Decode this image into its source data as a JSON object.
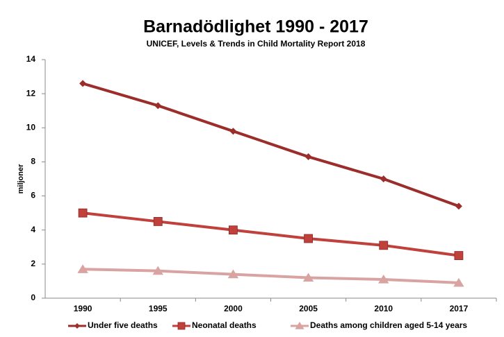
{
  "chart_data": {
    "type": "line",
    "title": "Barnadödlighet 1990 - 2017",
    "subtitle": "UNICEF, Levels & Trends in Child Mortality Report 2018",
    "y_label": "miljoner",
    "categories": [
      "1990",
      "1995",
      "2000",
      "2005",
      "2010",
      "2017"
    ],
    "series": [
      {
        "name": "Under five deaths",
        "color": "#9b2d2b",
        "marker": "diamond",
        "values": [
          12.6,
          11.3,
          9.8,
          8.3,
          7.0,
          5.4
        ]
      },
      {
        "name": "Neonatal deaths",
        "color": "#c0403c",
        "marker": "square",
        "values": [
          5.0,
          4.5,
          4.0,
          3.5,
          3.1,
          2.5
        ]
      },
      {
        "name": "Deaths among children aged 5-14 years",
        "color": "#d9a3a1",
        "marker": "triangle",
        "values": [
          1.7,
          1.6,
          1.4,
          1.2,
          1.1,
          0.9
        ]
      }
    ],
    "ylim": [
      0,
      14
    ],
    "yticks": [
      0,
      2,
      4,
      6,
      8,
      10,
      12,
      14
    ],
    "grid": false,
    "legend": "bottom"
  }
}
